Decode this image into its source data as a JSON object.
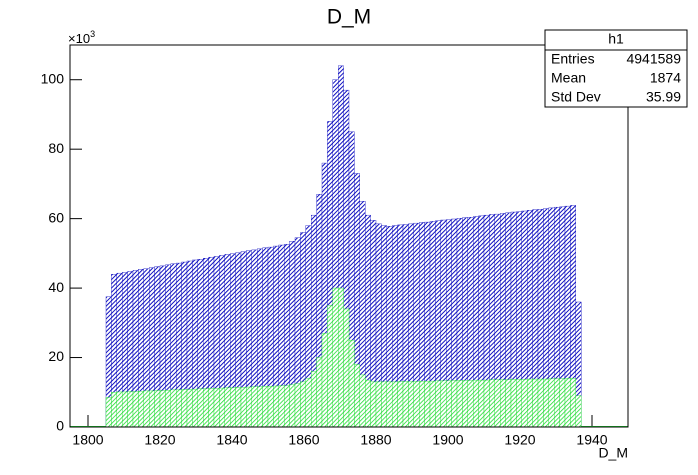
{
  "chart_data": {
    "type": "histogram",
    "title": "D_M",
    "x_label": "D_M",
    "y_multiplier": {
      "base": "×10",
      "exponent": "3"
    },
    "bins": [
      1805,
      1806.5,
      1808,
      1809.5,
      1811,
      1812.5,
      1814,
      1815.5,
      1817,
      1818.5,
      1820,
      1821.5,
      1823,
      1824.5,
      1826,
      1827.5,
      1829,
      1830.5,
      1832,
      1833.5,
      1835,
      1836.5,
      1838,
      1839.5,
      1841,
      1842.5,
      1844,
      1845.5,
      1847,
      1848.5,
      1850,
      1851.5,
      1853,
      1854.5,
      1856,
      1857.5,
      1859,
      1860.5,
      1862,
      1863.5,
      1865,
      1866.5,
      1868,
      1869.5,
      1871,
      1872.5,
      1874,
      1875.5,
      1877,
      1878.5,
      1880,
      1881.5,
      1883,
      1884.5,
      1886,
      1887.5,
      1889,
      1890.5,
      1892,
      1893.5,
      1895,
      1896.5,
      1898,
      1899.5,
      1901,
      1902.5,
      1904,
      1905.5,
      1907,
      1908.5,
      1910,
      1911.5,
      1913,
      1914.5,
      1916,
      1917.5,
      1919,
      1920.5,
      1922,
      1923.5,
      1925,
      1926.5,
      1928,
      1929.5,
      1931,
      1932.5,
      1934,
      1935.5,
      1937
    ],
    "series": [
      {
        "color": "#1010c0",
        "values": [
          37.5,
          44,
          44.3,
          44.5,
          44.8,
          45.1,
          45.4,
          45.6,
          45.9,
          46.2,
          46.4,
          46.7,
          47,
          47.2,
          47.5,
          47.8,
          48.1,
          48.3,
          48.6,
          48.9,
          49.1,
          49.4,
          49.7,
          49.9,
          50.2,
          50.5,
          50.8,
          51,
          51.3,
          51.6,
          51.8,
          52.1,
          52.4,
          52.6,
          53.5,
          54.5,
          56,
          58,
          61,
          67,
          76,
          88,
          100,
          104,
          97,
          85,
          73,
          65,
          61,
          59.5,
          58.5,
          58,
          57.8,
          58,
          58.2,
          58.3,
          58.5,
          58.7,
          58.9,
          59,
          59.2,
          59.4,
          59.6,
          59.7,
          59.9,
          60.1,
          60.3,
          60.4,
          60.6,
          60.8,
          61,
          61.2,
          61.3,
          61.5,
          61.7,
          61.9,
          62,
          62.2,
          62.4,
          62.6,
          62.7,
          62.9,
          63.1,
          63.3,
          63.4,
          63.6,
          63.8,
          36
        ]
      },
      {
        "color": "#22dd33",
        "values": [
          8.5,
          10,
          10.1,
          10.1,
          10.2,
          10.2,
          10.3,
          10.4,
          10.4,
          10.5,
          10.5,
          10.6,
          10.7,
          10.7,
          10.8,
          10.8,
          10.9,
          11,
          11,
          11.1,
          11.1,
          11.2,
          11.3,
          11.3,
          11.4,
          11.4,
          11.5,
          11.6,
          11.6,
          11.7,
          11.7,
          11.8,
          11.9,
          11.9,
          12.2,
          12.5,
          13,
          14,
          16,
          20,
          27,
          35,
          40,
          40,
          34,
          25,
          18,
          15,
          13.5,
          13,
          13,
          13,
          13,
          13,
          13.1,
          13.1,
          13.1,
          13.1,
          13.2,
          13.2,
          13.2,
          13.3,
          13.3,
          13.3,
          13.4,
          13.4,
          13.4,
          13.4,
          13.5,
          13.5,
          13.5,
          13.6,
          13.6,
          13.6,
          13.6,
          13.7,
          13.7,
          13.7,
          13.8,
          13.8,
          13.8,
          13.8,
          13.9,
          13.9,
          13.9,
          14,
          14,
          9
        ]
      }
    ],
    "xlim": [
      1795,
      1950
    ],
    "xticks": [
      1800,
      1820,
      1840,
      1860,
      1880,
      1900,
      1920,
      1940
    ],
    "ylim": [
      0,
      110
    ],
    "yticks": [
      0,
      20,
      40,
      60,
      80,
      100
    ],
    "stats": {
      "title": "h1",
      "rows": [
        {
          "label": "Entries",
          "value": 4941589
        },
        {
          "label": "Mean",
          "value": 1874
        },
        {
          "label": "Std Dev",
          "value": 35.99
        }
      ]
    }
  }
}
